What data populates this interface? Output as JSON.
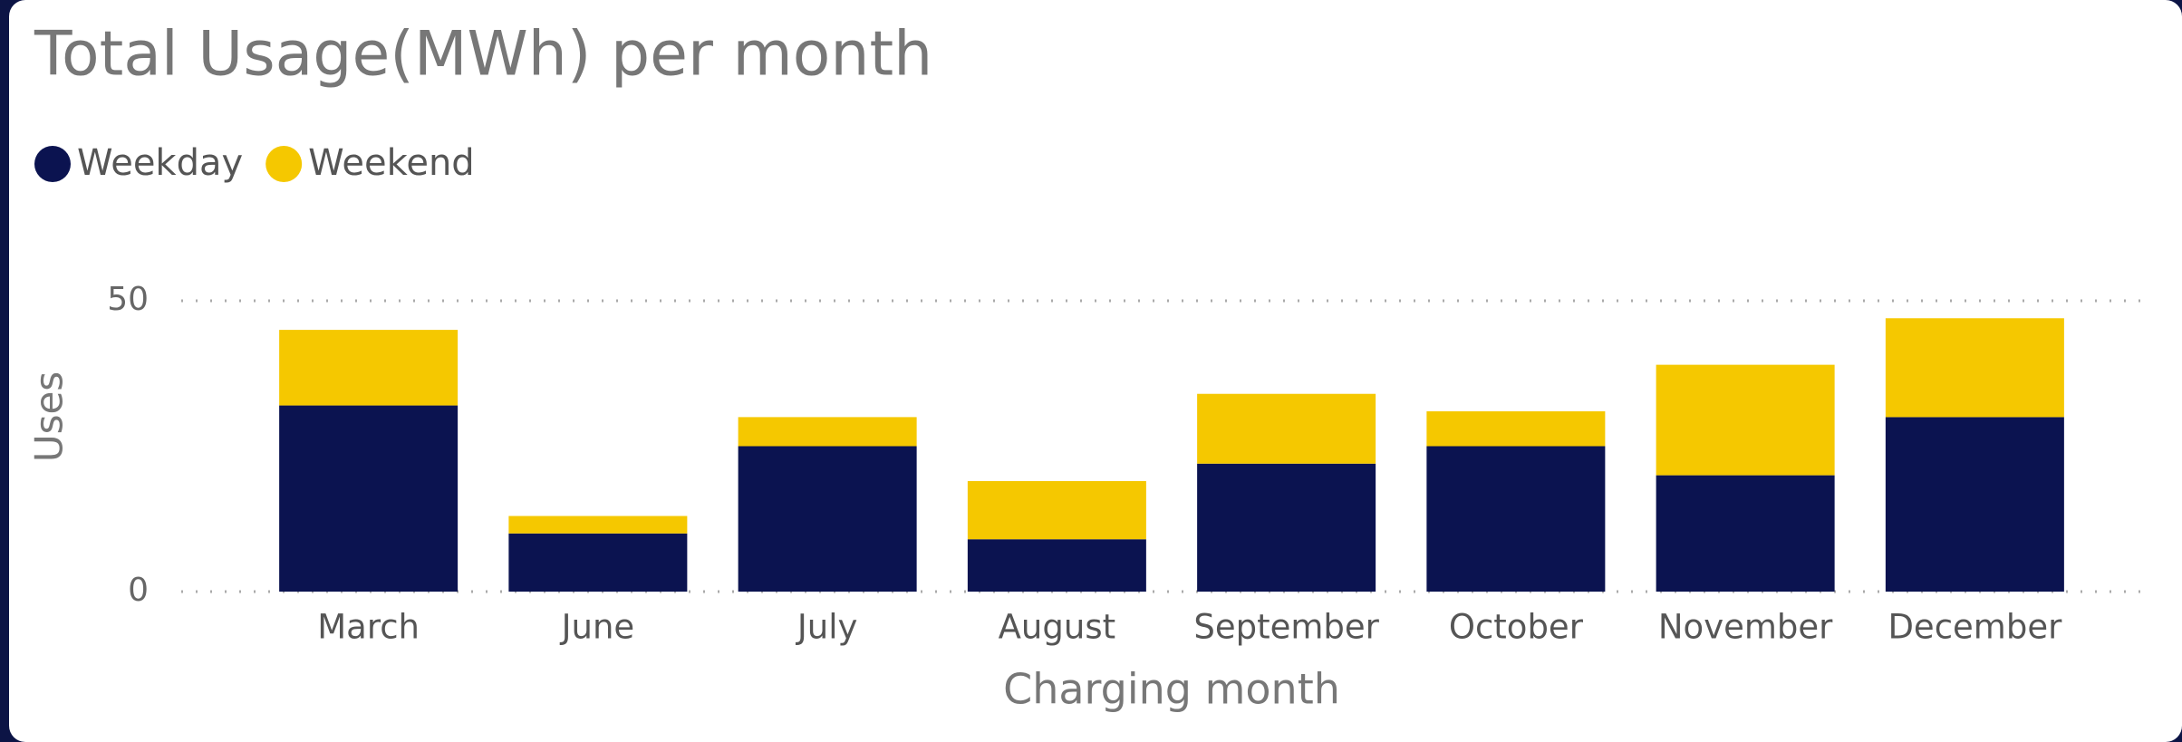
{
  "chart_data": {
    "type": "stacked_bar",
    "title": "Total Usage(MWh) per month",
    "x_label": "Charging month",
    "y_label": "Uses",
    "categories": [
      "March",
      "June",
      "July",
      "August",
      "September",
      "October",
      "November",
      "December"
    ],
    "series": [
      {
        "name": "Weekday",
        "color": "#0b1350",
        "values": [
          32,
          10,
          25,
          9,
          22,
          25,
          20,
          30
        ]
      },
      {
        "name": "Weekend",
        "color": "#f5c800",
        "values": [
          13,
          3,
          5,
          10,
          12,
          6,
          19,
          17
        ]
      }
    ],
    "ylim": [
      0,
      50
    ],
    "yticks": [
      0,
      50
    ],
    "grid": true,
    "legend": "top-left"
  }
}
